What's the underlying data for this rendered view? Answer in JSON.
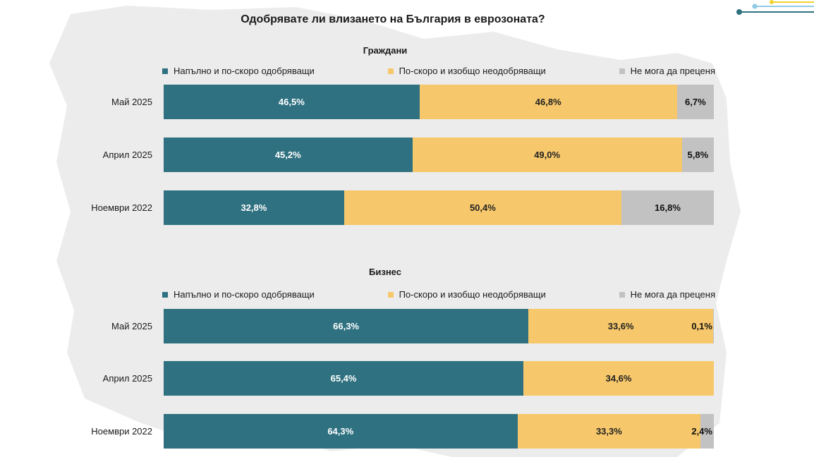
{
  "title": "Одобрявате ли влизането на България в еврозоната?",
  "colors": {
    "approve": "#2f7180",
    "disapprove": "#f7c86b",
    "unsure": "#c2c2c2"
  },
  "legend": [
    "Напълно и по-скоро одобряващи",
    "По-скоро и изобщо неодобряващи",
    "Не мога да преценя"
  ],
  "chart_data": [
    {
      "type": "bar",
      "stacked": true,
      "orientation": "horizontal",
      "title": "Граждани",
      "categories": [
        "Май 2025",
        "Април 2025",
        "Ноември 2022"
      ],
      "series": [
        {
          "name": "Напълно и по-скоро одобряващи",
          "values": [
            46.5,
            45.2,
            32.8
          ],
          "labels": [
            "46,5%",
            "45,2%",
            "32,8%"
          ]
        },
        {
          "name": "По-скоро и изобщо неодобряващи",
          "values": [
            46.8,
            49.0,
            50.4
          ],
          "labels": [
            "46,8%",
            "49,0%",
            "50,4%"
          ]
        },
        {
          "name": "Не мога да преценя",
          "values": [
            6.7,
            5.8,
            16.8
          ],
          "labels": [
            "6,7%",
            "5,8%",
            "16,8%"
          ]
        }
      ],
      "xlim": [
        0,
        100
      ],
      "legend_position": "top"
    },
    {
      "type": "bar",
      "stacked": true,
      "orientation": "horizontal",
      "title": "Бизнес",
      "categories": [
        "Май 2025",
        "Април 2025",
        "Ноември 2022"
      ],
      "series": [
        {
          "name": "Напълно и по-скоро одобряващи",
          "values": [
            66.3,
            65.4,
            64.3
          ],
          "labels": [
            "66,3%",
            "65,4%",
            "64,3%"
          ]
        },
        {
          "name": "По-скоро и изобщо неодобряващи",
          "values": [
            33.6,
            34.6,
            33.3
          ],
          "labels": [
            "33,6%",
            "34,6%",
            "33,3%"
          ]
        },
        {
          "name": "Не мога да преценя",
          "values": [
            0.1,
            0.0,
            2.4
          ],
          "labels": [
            "0,1%",
            "",
            "2,4%"
          ]
        }
      ],
      "xlim": [
        0,
        100
      ],
      "legend_position": "top"
    }
  ]
}
